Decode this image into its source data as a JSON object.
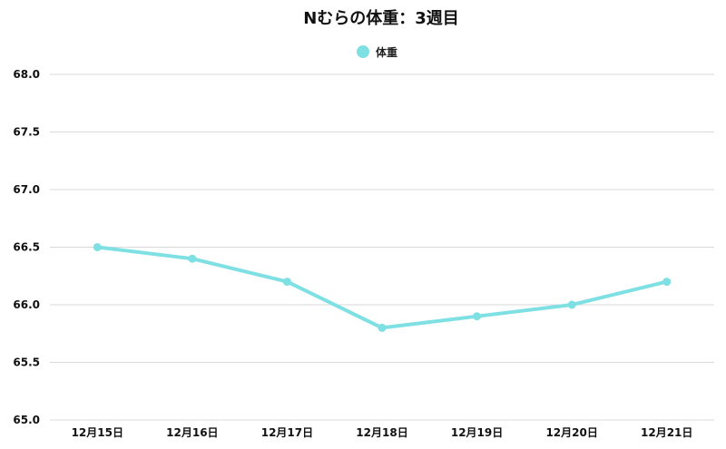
{
  "chart_data": {
    "type": "line",
    "title": "Nむらの体重：3週目",
    "categories": [
      "12月15日",
      "12月16日",
      "12月17日",
      "12月18日",
      "12月19日",
      "12月20日",
      "12月21日"
    ],
    "series": [
      {
        "name": "体重",
        "values": [
          66.5,
          66.4,
          66.2,
          65.8,
          65.9,
          66.0,
          66.2
        ]
      }
    ],
    "ylim": [
      65.0,
      68.0
    ],
    "yticks": [
      "65.0",
      "65.5",
      "66.0",
      "66.5",
      "67.0",
      "67.5",
      "68.0"
    ],
    "grid": true,
    "legend_position": "top-center",
    "line_color": "#7fe0e4",
    "grid_color": "#d9d9d9"
  }
}
